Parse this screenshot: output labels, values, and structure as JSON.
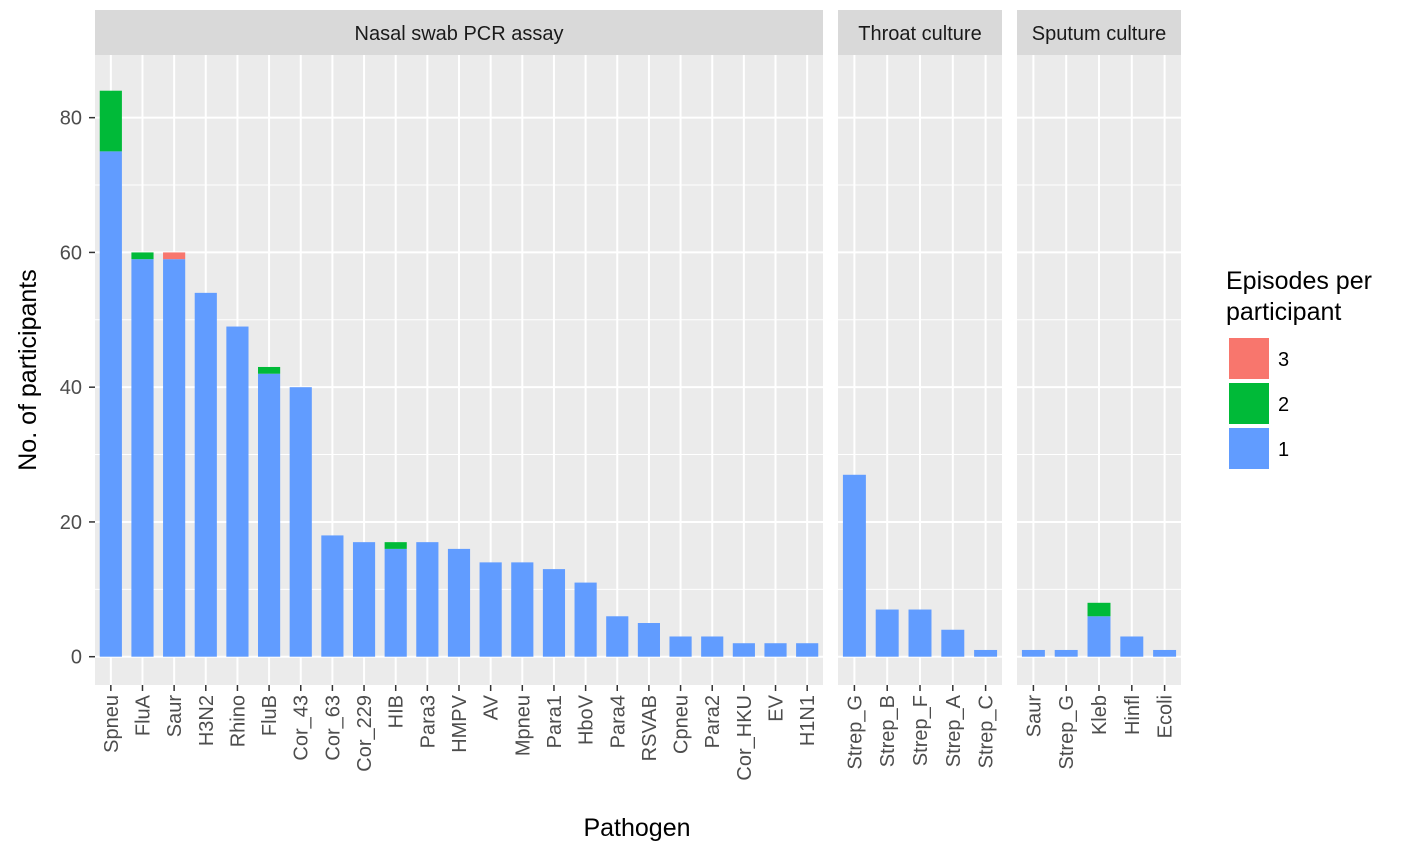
{
  "chart_data": {
    "type": "bar",
    "stacked": true,
    "ylabel": "No. of participants",
    "xlabel": "Pathogen",
    "legend_title": "Episodes per participant",
    "ylim": [
      -4.2,
      89.3
    ],
    "yticks": [
      0,
      20,
      40,
      60,
      80
    ],
    "grid": true,
    "series": [
      {
        "name": "1",
        "color": "#619cff"
      },
      {
        "name": "2",
        "color": "#00ba38"
      },
      {
        "name": "3",
        "color": "#f8766d"
      }
    ],
    "facets": [
      {
        "title": "Nasal swab PCR assay",
        "categories": [
          "Spneu",
          "FluA",
          "Saur",
          "H3N2",
          "Rhino",
          "FluB",
          "Cor_43",
          "Cor_63",
          "Cor_229",
          "HIB",
          "Para3",
          "HMPV",
          "AV",
          "Mpneu",
          "Para1",
          "HboV",
          "Para4",
          "RSVAB",
          "Cpneu",
          "Para2",
          "Cor_HKU",
          "EV",
          "H1N1"
        ],
        "series": [
          {
            "values": [
              75,
              59,
              59,
              54,
              49,
              42,
              40,
              18,
              17,
              16,
              17,
              16,
              14,
              14,
              13,
              11,
              6,
              5,
              3,
              3,
              2,
              2,
              2
            ]
          },
          {
            "values": [
              9,
              1,
              0,
              0,
              0,
              1,
              0,
              0,
              0,
              1,
              0,
              0,
              0,
              0,
              0,
              0,
              0,
              0,
              0,
              0,
              0,
              0,
              0
            ]
          },
          {
            "values": [
              0,
              0,
              1,
              0,
              0,
              0,
              0,
              0,
              0,
              0,
              0,
              0,
              0,
              0,
              0,
              0,
              0,
              0,
              0,
              0,
              0,
              0,
              0
            ]
          }
        ]
      },
      {
        "title": "Throat culture",
        "categories": [
          "Strep_G",
          "Strep_B",
          "Strep_F",
          "Strep_A",
          "Strep_C"
        ],
        "series": [
          {
            "values": [
              27,
              7,
              7,
              4,
              1
            ]
          },
          {
            "values": [
              0,
              0,
              0,
              0,
              0
            ]
          },
          {
            "values": [
              0,
              0,
              0,
              0,
              0
            ]
          }
        ]
      },
      {
        "title": "Sputum culture",
        "categories": [
          "Saur",
          "Strep_G",
          "Kleb",
          "Hinfl",
          "Ecoli"
        ],
        "series": [
          {
            "values": [
              1,
              1,
              6,
              3,
              1
            ]
          },
          {
            "values": [
              0,
              0,
              2,
              0,
              0
            ]
          },
          {
            "values": [
              0,
              0,
              0,
              0,
              0
            ]
          }
        ]
      }
    ]
  }
}
